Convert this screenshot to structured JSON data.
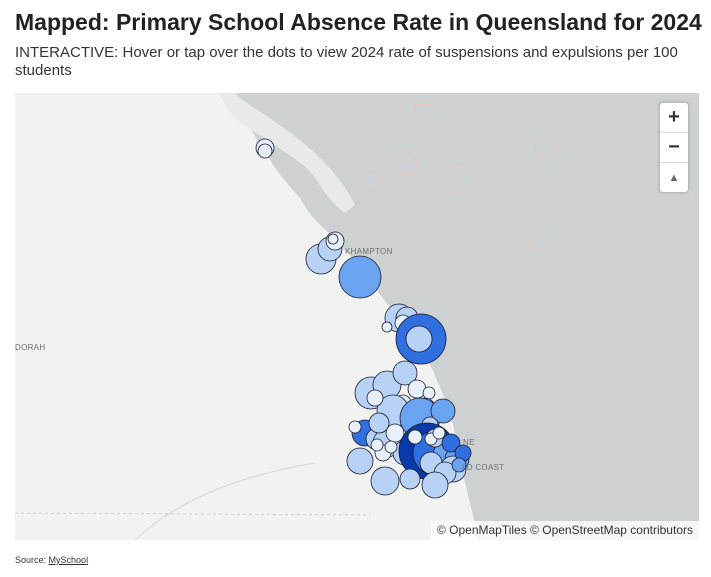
{
  "title": "Mapped: Primary School Absence Rate in Queensland for 2024",
  "subtitle": "INTERACTIVE: Hover or tap over the dots to view 2024 rate of suspensions and expulsions per 100 students",
  "map": {
    "place_labels": {
      "rockhampton": "KHAMPTON",
      "goondoorah": "DORAH",
      "brisbane": "NE",
      "gold_coast": "LD COAST"
    },
    "controls": {
      "zoom_in": "+",
      "zoom_out": "−",
      "compass": "▲"
    },
    "attribution": "© OpenMapTiles © OpenStreetMap contributors"
  },
  "legend_colors": {
    "very_low": "#e8f0fb",
    "low": "#b8d2f5",
    "medium": "#6aa3ef",
    "high": "#2f6fe0",
    "very_high": "#0a3aa8"
  },
  "source": {
    "label": "Source:",
    "link": "MySchool"
  }
}
